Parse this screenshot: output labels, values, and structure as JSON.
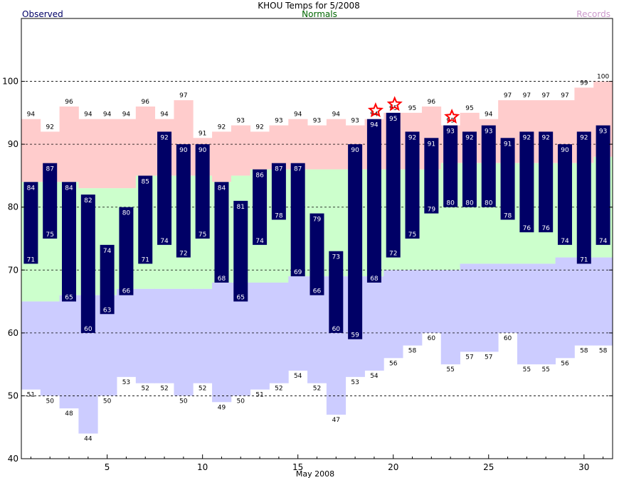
{
  "colors": {
    "observed": "#000066",
    "observed_label": "#ffffff",
    "normals_fill": "#ccffcc",
    "record_high_fill": "#ffcccc",
    "record_low_fill": "#ccccff",
    "title": "#000000",
    "legend_observed": "#000066",
    "legend_normals": "#006600",
    "legend_records": "#cc99cc",
    "star": "#ff0000",
    "grid": "#000000"
  },
  "chart_data": {
    "type": "bar",
    "title": "KHOU Temps for 5/2008",
    "xlabel": "May 2008",
    "ylabel": "",
    "legend": {
      "observed": "Observed",
      "normals": "Normals",
      "records": "Records"
    },
    "ylim": [
      40,
      110
    ],
    "yticks": [
      40,
      50,
      60,
      70,
      80,
      90,
      100
    ],
    "yticks_labels": [
      "40",
      "50",
      "60",
      "70",
      "80",
      "90",
      "100"
    ],
    "xlim": [
      0.5,
      31.5
    ],
    "xticks": [
      5,
      10,
      15,
      20,
      25,
      30
    ],
    "xticks_labels": [
      "5",
      "10",
      "15",
      "20",
      "25",
      "30"
    ],
    "grid_dashed": [
      50,
      60,
      70,
      80,
      90,
      100
    ],
    "days": [
      1,
      2,
      3,
      4,
      5,
      6,
      7,
      8,
      9,
      10,
      11,
      12,
      13,
      14,
      15,
      16,
      17,
      18,
      19,
      20,
      21,
      22,
      23,
      24,
      25,
      26,
      27,
      28,
      29,
      30,
      31
    ],
    "observed_high": [
      84,
      87,
      84,
      82,
      74,
      80,
      85,
      92,
      90,
      90,
      84,
      81,
      86,
      87,
      87,
      79,
      73,
      90,
      94,
      95,
      92,
      91,
      93,
      92,
      93,
      91,
      92,
      92,
      90,
      92,
      93
    ],
    "observed_low": [
      71,
      75,
      65,
      60,
      63,
      66,
      71,
      74,
      72,
      75,
      68,
      65,
      74,
      78,
      69,
      66,
      60,
      59,
      68,
      72,
      75,
      79,
      80,
      80,
      80,
      78,
      76,
      76,
      74,
      71,
      74
    ],
    "normal_high": [
      84,
      84,
      84,
      83,
      83,
      83,
      85,
      85,
      85,
      85,
      84,
      85,
      86,
      86,
      86,
      86,
      86,
      86,
      86,
      86,
      86,
      86,
      87,
      87,
      87,
      87,
      87,
      87,
      87,
      87,
      88
    ],
    "normal_low": [
      65,
      65,
      66,
      66,
      66,
      67,
      67,
      67,
      67,
      67,
      68,
      68,
      68,
      68,
      69,
      69,
      69,
      69,
      69,
      70,
      70,
      70,
      70,
      71,
      71,
      71,
      71,
      71,
      72,
      72,
      72
    ],
    "record_high": [
      94,
      92,
      96,
      94,
      94,
      94,
      96,
      94,
      97,
      91,
      92,
      93,
      92,
      93,
      94,
      93,
      94,
      93,
      94,
      95,
      95,
      96,
      93,
      95,
      94,
      97,
      97,
      97,
      97,
      99,
      100
    ],
    "record_low": [
      51,
      50,
      48,
      44,
      50,
      53,
      52,
      52,
      50,
      52,
      49,
      50,
      51,
      52,
      54,
      52,
      47,
      53,
      54,
      56,
      58,
      60,
      55,
      57,
      57,
      60,
      55,
      55,
      56,
      58,
      58
    ],
    "record_high_set_days": [
      19,
      20,
      23
    ]
  }
}
